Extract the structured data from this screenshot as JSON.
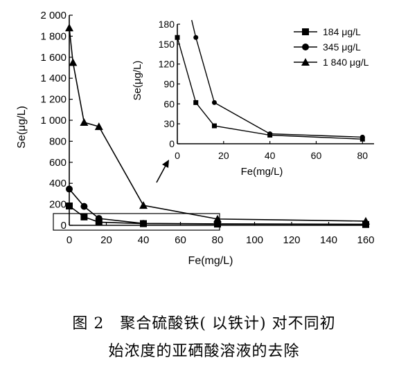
{
  "chart_data": [
    {
      "type": "line",
      "xlabel": "Fe(mg/L)",
      "ylabel": "Se(μg/L)",
      "xlim": [
        0,
        160
      ],
      "ylim": [
        0,
        2000
      ],
      "xticks": [
        "0",
        "20",
        "40",
        "60",
        "80",
        "100",
        "120",
        "140",
        "160"
      ],
      "yticks": [
        "0",
        "200",
        "400",
        "600",
        "800",
        "1 000",
        "1 200",
        "1 400",
        "1 600",
        "1 800",
        "2 000"
      ],
      "series": [
        {
          "name": "184 μg/L",
          "marker": "square",
          "x": [
            0,
            8,
            16,
            40,
            80,
            160
          ],
          "y": [
            184,
            80,
            30,
            16,
            12,
            8
          ]
        },
        {
          "name": "345 μg/L",
          "marker": "circle",
          "x": [
            0,
            8,
            16,
            40,
            80,
            160
          ],
          "y": [
            345,
            180,
            65,
            18,
            14,
            10
          ]
        },
        {
          "name": "1 840 μg/L",
          "marker": "triangle",
          "x": [
            0,
            2,
            8,
            16,
            40,
            80,
            160
          ],
          "y": [
            1880,
            1550,
            980,
            940,
            190,
            60,
            40
          ]
        }
      ],
      "legend": "top-right of inset"
    },
    {
      "type": "line",
      "inset": true,
      "xlabel": "Fe(mg/L)",
      "ylabel": "Se(μg/L)",
      "xlim": [
        0,
        85
      ],
      "ylim": [
        0,
        180
      ],
      "xticks": [
        "0",
        "20",
        "40",
        "60",
        "80"
      ],
      "yticks": [
        "0",
        "30",
        "60",
        "90",
        "120",
        "150",
        "180"
      ],
      "series": [
        {
          "name": "184 μg/L",
          "x": [
            0,
            8,
            16,
            40,
            80
          ],
          "y": [
            160,
            62,
            27,
            13,
            7
          ]
        },
        {
          "name": "345 μg/L",
          "x": [
            8,
            16,
            40,
            80
          ],
          "y": [
            160,
            62,
            15,
            10
          ]
        }
      ]
    }
  ],
  "legend": {
    "items": [
      {
        "label": "184 μg/L",
        "marker": "square"
      },
      {
        "label": "345 μg/L",
        "marker": "circle"
      },
      {
        "label": "1 840 μg/L",
        "marker": "triangle"
      }
    ]
  },
  "caption": {
    "line1": "图 2　聚合硫酸铁( 以铁计) 对不同初",
    "line2": "始浓度的亚硒酸溶液的去除"
  }
}
